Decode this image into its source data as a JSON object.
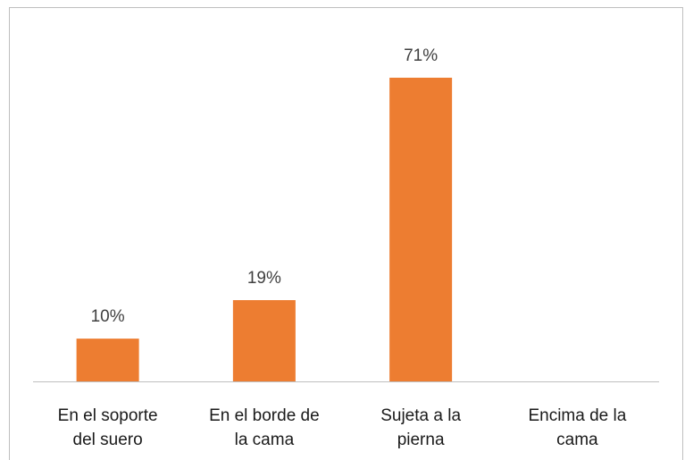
{
  "chart_data": {
    "type": "bar",
    "categories": [
      "En el soporte\ndel suero",
      "En el borde de\nla cama",
      "Sujeta a la\npierna",
      "Encima de la\ncama"
    ],
    "values": [
      10,
      19,
      71,
      0
    ],
    "value_labels": [
      "10%",
      "19%",
      "71%",
      null
    ],
    "color": "#ed7d31"
  }
}
